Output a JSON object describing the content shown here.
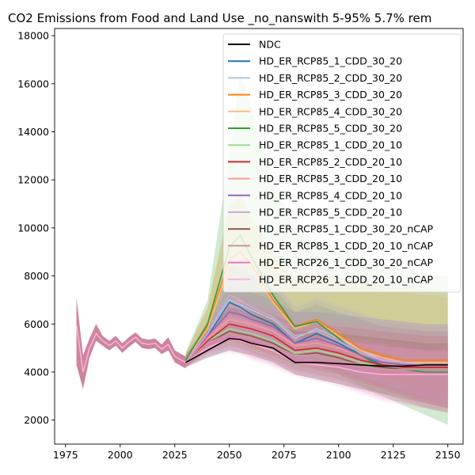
{
  "chart_data": {
    "type": "line",
    "title": "CO2 Emissions from Food and Land Use _no_nanswith 5-95% 5.7% rem",
    "xlabel": "",
    "ylabel": "",
    "xlim": [
      1970,
      2157
    ],
    "ylim": [
      1000,
      18300
    ],
    "x_ticks": [
      1975,
      2000,
      2025,
      2050,
      2075,
      2100,
      2125,
      2150
    ],
    "y_ticks": [
      2000,
      4000,
      6000,
      8000,
      10000,
      12000,
      14000,
      16000,
      18000
    ],
    "legend": "top-right",
    "x": [
      2030,
      2040,
      2050,
      2055,
      2060,
      2070,
      2080,
      2090,
      2100,
      2110,
      2120,
      2130,
      2140,
      2150
    ],
    "history": {
      "x": [
        1980,
        1983,
        1986,
        1989,
        1992,
        1995,
        1998,
        2001,
        2004,
        2007,
        2010,
        2013,
        2016,
        2019,
        2022,
        2025,
        2028,
        2030
      ],
      "y": [
        6000,
        4000,
        5000,
        5600,
        5300,
        5100,
        5300,
        5000,
        5250,
        5450,
        5200,
        5150,
        5200,
        4950,
        5150,
        4650,
        4500,
        4400
      ],
      "lower": [
        4300,
        3300,
        4600,
        5300,
        5100,
        4900,
        5100,
        4800,
        5050,
        5250,
        5000,
        4950,
        5000,
        4750,
        4900,
        4400,
        4250,
        4150
      ],
      "upper": [
        7100,
        4700,
        5400,
        6000,
        5500,
        5300,
        5500,
        5200,
        5450,
        5650,
        5400,
        5350,
        5400,
        5150,
        5450,
        4900,
        4750,
        4650
      ],
      "color": "#e377c2"
    },
    "series": [
      {
        "name": "NDC",
        "color": "#000000",
        "values": [
          4400,
          4900,
          5400,
          5350,
          5200,
          5000,
          4400,
          4400,
          4350,
          4300,
          4250,
          4250,
          4300,
          4300
        ],
        "lower": [
          4200,
          4600,
          4900,
          4800,
          4700,
          4400,
          3900,
          3700,
          3500,
          3300,
          3100,
          2900,
          2700,
          2500
        ],
        "upper": [
          4650,
          5300,
          6000,
          6000,
          5900,
          5700,
          5500,
          5400,
          5300,
          5200,
          5100,
          5100,
          5050,
          5000
        ]
      },
      {
        "name": "HD_ER_RCP85_1_CDD_30_20",
        "color": "#1f77b4",
        "values": [
          4400,
          5500,
          6900,
          6700,
          6400,
          6000,
          5200,
          5600,
          5200,
          4700,
          4300,
          4200,
          4200,
          4200
        ],
        "lower": [
          4200,
          5000,
          5800,
          5500,
          5300,
          5000,
          4400,
          4300,
          4000,
          3700,
          3400,
          3100,
          2900,
          2700
        ],
        "upper": [
          4700,
          6000,
          8500,
          8300,
          8000,
          7500,
          6500,
          6800,
          6500,
          6200,
          5900,
          5800,
          5700,
          5700
        ]
      },
      {
        "name": "HD_ER_RCP85_2_CDD_30_20",
        "color": "#aec7e8",
        "values": [
          4400,
          5600,
          7000,
          6800,
          6600,
          6200,
          5400,
          5800,
          5400,
          4900,
          4500,
          4400,
          4400,
          4400
        ],
        "lower": [
          4200,
          5100,
          5900,
          5700,
          5500,
          5200,
          4600,
          4500,
          4200,
          3900,
          3600,
          3300,
          3100,
          2900
        ],
        "upper": [
          4700,
          6100,
          8700,
          8500,
          8200,
          7700,
          6700,
          7000,
          6700,
          6400,
          6100,
          6000,
          5900,
          5900
        ]
      },
      {
        "name": "HD_ER_RCP85_3_CDD_30_20",
        "color": "#ff7f0e",
        "values": [
          4500,
          5900,
          8700,
          9000,
          8500,
          7000,
          5900,
          6200,
          5600,
          5000,
          4700,
          4500,
          4500,
          4500
        ],
        "lower": [
          4300,
          5300,
          6800,
          6800,
          6400,
          5600,
          4800,
          4700,
          4400,
          4100,
          3800,
          3500,
          3300,
          3100
        ],
        "upper": [
          4800,
          6700,
          11000,
          11500,
          10500,
          9000,
          8000,
          8200,
          8000,
          7800,
          7600,
          7500,
          7400,
          7300
        ]
      },
      {
        "name": "HD_ER_RCP85_4_CDD_30_20",
        "color": "#ffbb78",
        "values": [
          4500,
          5800,
          8500,
          8800,
          8300,
          6900,
          5800,
          6100,
          5500,
          4900,
          4600,
          4400,
          4400,
          4400
        ],
        "lower": [
          4300,
          5200,
          6700,
          6700,
          6300,
          5500,
          4700,
          4600,
          4300,
          4000,
          3700,
          3400,
          3200,
          3000
        ],
        "upper": [
          4800,
          6600,
          10800,
          11300,
          10300,
          8800,
          7800,
          8000,
          7800,
          7600,
          7400,
          7300,
          7200,
          7100
        ]
      },
      {
        "name": "HD_ER_RCP85_5_CDD_30_20",
        "color": "#2ca02c",
        "values": [
          4500,
          6000,
          9200,
          9700,
          8800,
          7200,
          5900,
          6100,
          5400,
          4700,
          4200,
          4100,
          4000,
          4000
        ],
        "lower": [
          4300,
          5400,
          7000,
          7000,
          6500,
          5500,
          4500,
          4300,
          3900,
          3400,
          3000,
          2600,
          2200,
          1800
        ],
        "upper": [
          4800,
          7000,
          13000,
          16500,
          15000,
          12000,
          10000,
          9500,
          9200,
          8800,
          8500,
          8300,
          8100,
          8000
        ]
      },
      {
        "name": "HD_ER_RCP85_1_CDD_20_10",
        "color": "#98df8a",
        "values": [
          4400,
          5300,
          5800,
          5700,
          5600,
          5300,
          4800,
          4900,
          4700,
          4400,
          4200,
          4100,
          4100,
          4100
        ],
        "lower": [
          4200,
          4900,
          5200,
          5100,
          4900,
          4600,
          4200,
          4000,
          3800,
          3500,
          3200,
          2900,
          2600,
          2400
        ],
        "upper": [
          4700,
          5800,
          6800,
          6700,
          6500,
          6200,
          5800,
          5800,
          5700,
          5600,
          5500,
          5400,
          5300,
          5300
        ]
      },
      {
        "name": "HD_ER_RCP85_2_CDD_20_10",
        "color": "#d62728",
        "values": [
          4400,
          5300,
          6000,
          5900,
          5800,
          5500,
          4900,
          5000,
          4800,
          4500,
          4300,
          4200,
          4200,
          4200
        ],
        "lower": [
          4200,
          4900,
          5300,
          5200,
          5000,
          4700,
          4300,
          4100,
          3900,
          3600,
          3300,
          3000,
          2700,
          2500
        ],
        "upper": [
          4700,
          5800,
          7000,
          6900,
          6700,
          6400,
          6000,
          6000,
          5900,
          5800,
          5700,
          5600,
          5500,
          5500
        ]
      },
      {
        "name": "HD_ER_RCP85_3_CDD_20_10",
        "color": "#ff9896",
        "values": [
          4400,
          5400,
          6200,
          6100,
          6000,
          5700,
          5100,
          5200,
          5000,
          4700,
          4400,
          4300,
          4300,
          4300
        ],
        "lower": [
          4200,
          5000,
          5400,
          5300,
          5100,
          4800,
          4400,
          4200,
          4000,
          3700,
          3400,
          3100,
          2800,
          2600
        ],
        "upper": [
          4700,
          5900,
          7200,
          7100,
          6900,
          6600,
          6200,
          6200,
          6100,
          6000,
          5900,
          5800,
          5700,
          5700
        ]
      },
      {
        "name": "HD_ER_RCP85_4_CDD_20_10",
        "color": "#9467bd",
        "values": [
          4400,
          5500,
          6500,
          6400,
          6200,
          5900,
          5200,
          5400,
          5100,
          4700,
          4400,
          4300,
          4300,
          4300
        ],
        "lower": [
          4200,
          5000,
          5500,
          5400,
          5200,
          4900,
          4400,
          4200,
          4000,
          3700,
          3400,
          3100,
          2800,
          2600
        ],
        "upper": [
          4700,
          6000,
          7600,
          7500,
          7300,
          7000,
          6500,
          6500,
          6400,
          6300,
          6200,
          6100,
          6000,
          6000
        ]
      },
      {
        "name": "HD_ER_RCP85_5_CDD_20_10",
        "color": "#c5b0d5",
        "values": [
          4400,
          5600,
          7200,
          7000,
          6700,
          6300,
          5500,
          5700,
          5300,
          4800,
          4500,
          4400,
          4300,
          4300
        ],
        "lower": [
          4200,
          5100,
          6000,
          5800,
          5600,
          5200,
          4600,
          4400,
          4100,
          3800,
          3500,
          3200,
          2900,
          2700
        ],
        "upper": [
          4700,
          6200,
          8800,
          8600,
          8300,
          7800,
          6800,
          7100,
          6800,
          6500,
          6200,
          6100,
          6000,
          6000
        ]
      },
      {
        "name": "HD_ER_RCP85_1_CDD_30_20_nCAP",
        "color": "#8c564b",
        "values": [
          4400,
          5200,
          5700,
          5600,
          5500,
          5200,
          4700,
          4800,
          4600,
          4300,
          4200,
          4100,
          4100,
          4100
        ],
        "lower": [
          4200,
          4800,
          5100,
          5000,
          4800,
          4500,
          4100,
          3900,
          3700,
          3400,
          3100,
          2800,
          2500,
          2300
        ],
        "upper": [
          4700,
          5700,
          6700,
          6600,
          6400,
          6100,
          5700,
          5700,
          5600,
          5500,
          5400,
          5300,
          5200,
          5200
        ]
      },
      {
        "name": "HD_ER_RCP85_1_CDD_20_10_nCAP",
        "color": "#c49c94",
        "values": [
          4400,
          5200,
          5600,
          5500,
          5400,
          5100,
          4700,
          4700,
          4500,
          4300,
          4100,
          4100,
          4100,
          4100
        ],
        "lower": [
          4200,
          4800,
          5000,
          4900,
          4700,
          4400,
          4000,
          3800,
          3600,
          3300,
          3000,
          2700,
          2500,
          2300
        ],
        "upper": [
          4700,
          5600,
          6600,
          6500,
          6300,
          6000,
          5600,
          5600,
          5500,
          5400,
          5300,
          5200,
          5100,
          5100
        ]
      },
      {
        "name": "HD_ER_RCP26_1_CDD_30_20_nCAP",
        "color": "#e377c2",
        "values": [
          4400,
          5100,
          5500,
          5400,
          5300,
          5000,
          4500,
          4400,
          4300,
          4100,
          4000,
          3950,
          3950,
          3950
        ],
        "lower": [
          4200,
          4700,
          4900,
          4800,
          4600,
          4300,
          3900,
          3700,
          3500,
          3200,
          2900,
          2700,
          2500,
          2400
        ],
        "upper": [
          4700,
          5600,
          6500,
          6400,
          6200,
          5900,
          5500,
          5500,
          5400,
          5300,
          5200,
          5100,
          5000,
          5000
        ]
      },
      {
        "name": "HD_ER_RCP26_1_CDD_20_10_nCAP",
        "color": "#f7b6d2",
        "values": [
          4400,
          5000,
          5400,
          5300,
          5200,
          4900,
          4400,
          4300,
          4200,
          4000,
          3900,
          3900,
          3900,
          3900
        ],
        "lower": [
          4200,
          4600,
          4800,
          4700,
          4500,
          4200,
          3800,
          3600,
          3400,
          3100,
          2800,
          2600,
          2500,
          2400
        ],
        "upper": [
          4700,
          5500,
          6400,
          6300,
          6100,
          5800,
          5400,
          5400,
          5300,
          5200,
          5100,
          5000,
          4900,
          4900
        ]
      }
    ]
  }
}
